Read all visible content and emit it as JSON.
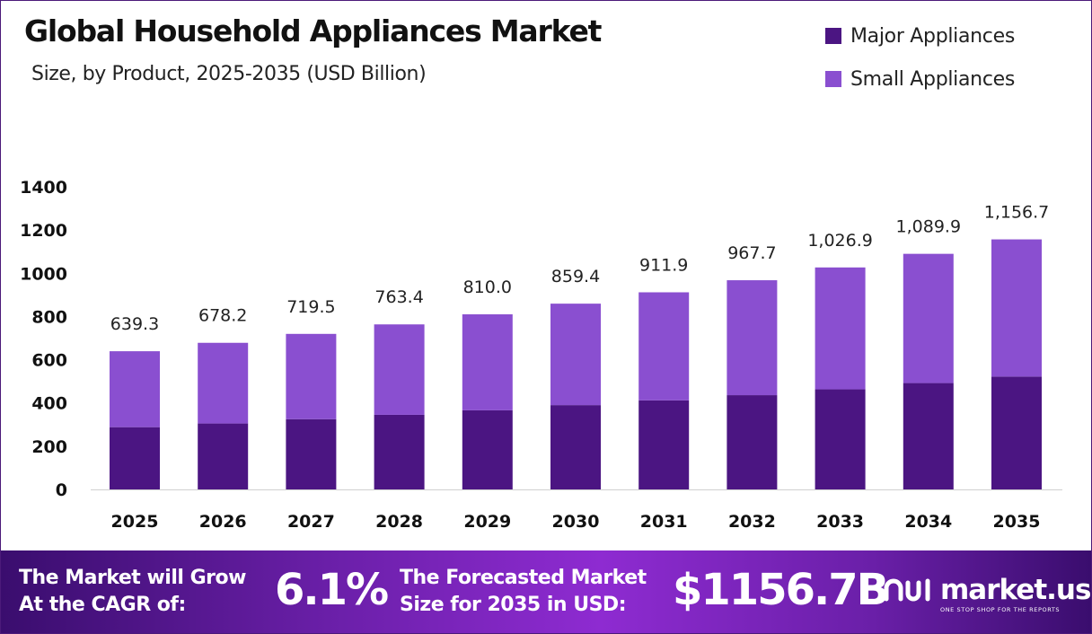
{
  "header": {
    "title": "Global Household Appliances Market",
    "subtitle": "Size, by Product, 2025-2035 (USD Billion)"
  },
  "legend": [
    {
      "label": "Major Appliances",
      "color": "#4b1582"
    },
    {
      "label": "Small Appliances",
      "color": "#8a4fd0"
    }
  ],
  "chart_data": {
    "type": "bar",
    "stacked": true,
    "categories": [
      "2025",
      "2026",
      "2027",
      "2028",
      "2029",
      "2030",
      "2031",
      "2032",
      "2033",
      "2034",
      "2035"
    ],
    "series": [
      {
        "name": "Major Appliances",
        "color": "#4b1582",
        "values": [
          288,
          305,
          325,
          345,
          366,
          390,
          412,
          436,
          463,
          492,
          522
        ]
      },
      {
        "name": "Small Appliances",
        "color": "#8a4fd0",
        "values": [
          351.3,
          373.2,
          394.5,
          418.4,
          444.0,
          469.4,
          499.9,
          531.7,
          563.9,
          597.9,
          634.7
        ]
      }
    ],
    "totals": [
      639.3,
      678.2,
      719.5,
      763.4,
      810.0,
      859.4,
      911.9,
      967.7,
      1026.9,
      1089.9,
      1156.7
    ],
    "total_labels": [
      "639.3",
      "678.2",
      "719.5",
      "763.4",
      "810.0",
      "859.4",
      "911.9",
      "967.7",
      "1,026.9",
      "1,089.9",
      "1,156.7"
    ],
    "y_ticks": [
      0,
      200,
      400,
      600,
      800,
      1000,
      1200,
      1400
    ],
    "ylim": [
      0,
      1400
    ],
    "grid": false,
    "legend_position": "top-right"
  },
  "footer": {
    "cagr_label_line1": "The Market will Grow",
    "cagr_label_line2": "At the CAGR of:",
    "cagr_value": "6.1%",
    "forecast_label_line1": "The Forecasted Market",
    "forecast_label_line2": "Size for 2035 in USD:",
    "forecast_value": "$1156.7B",
    "brand_name": "market.us",
    "brand_tagline": "ONE STOP SHOP FOR THE REPORTS"
  }
}
